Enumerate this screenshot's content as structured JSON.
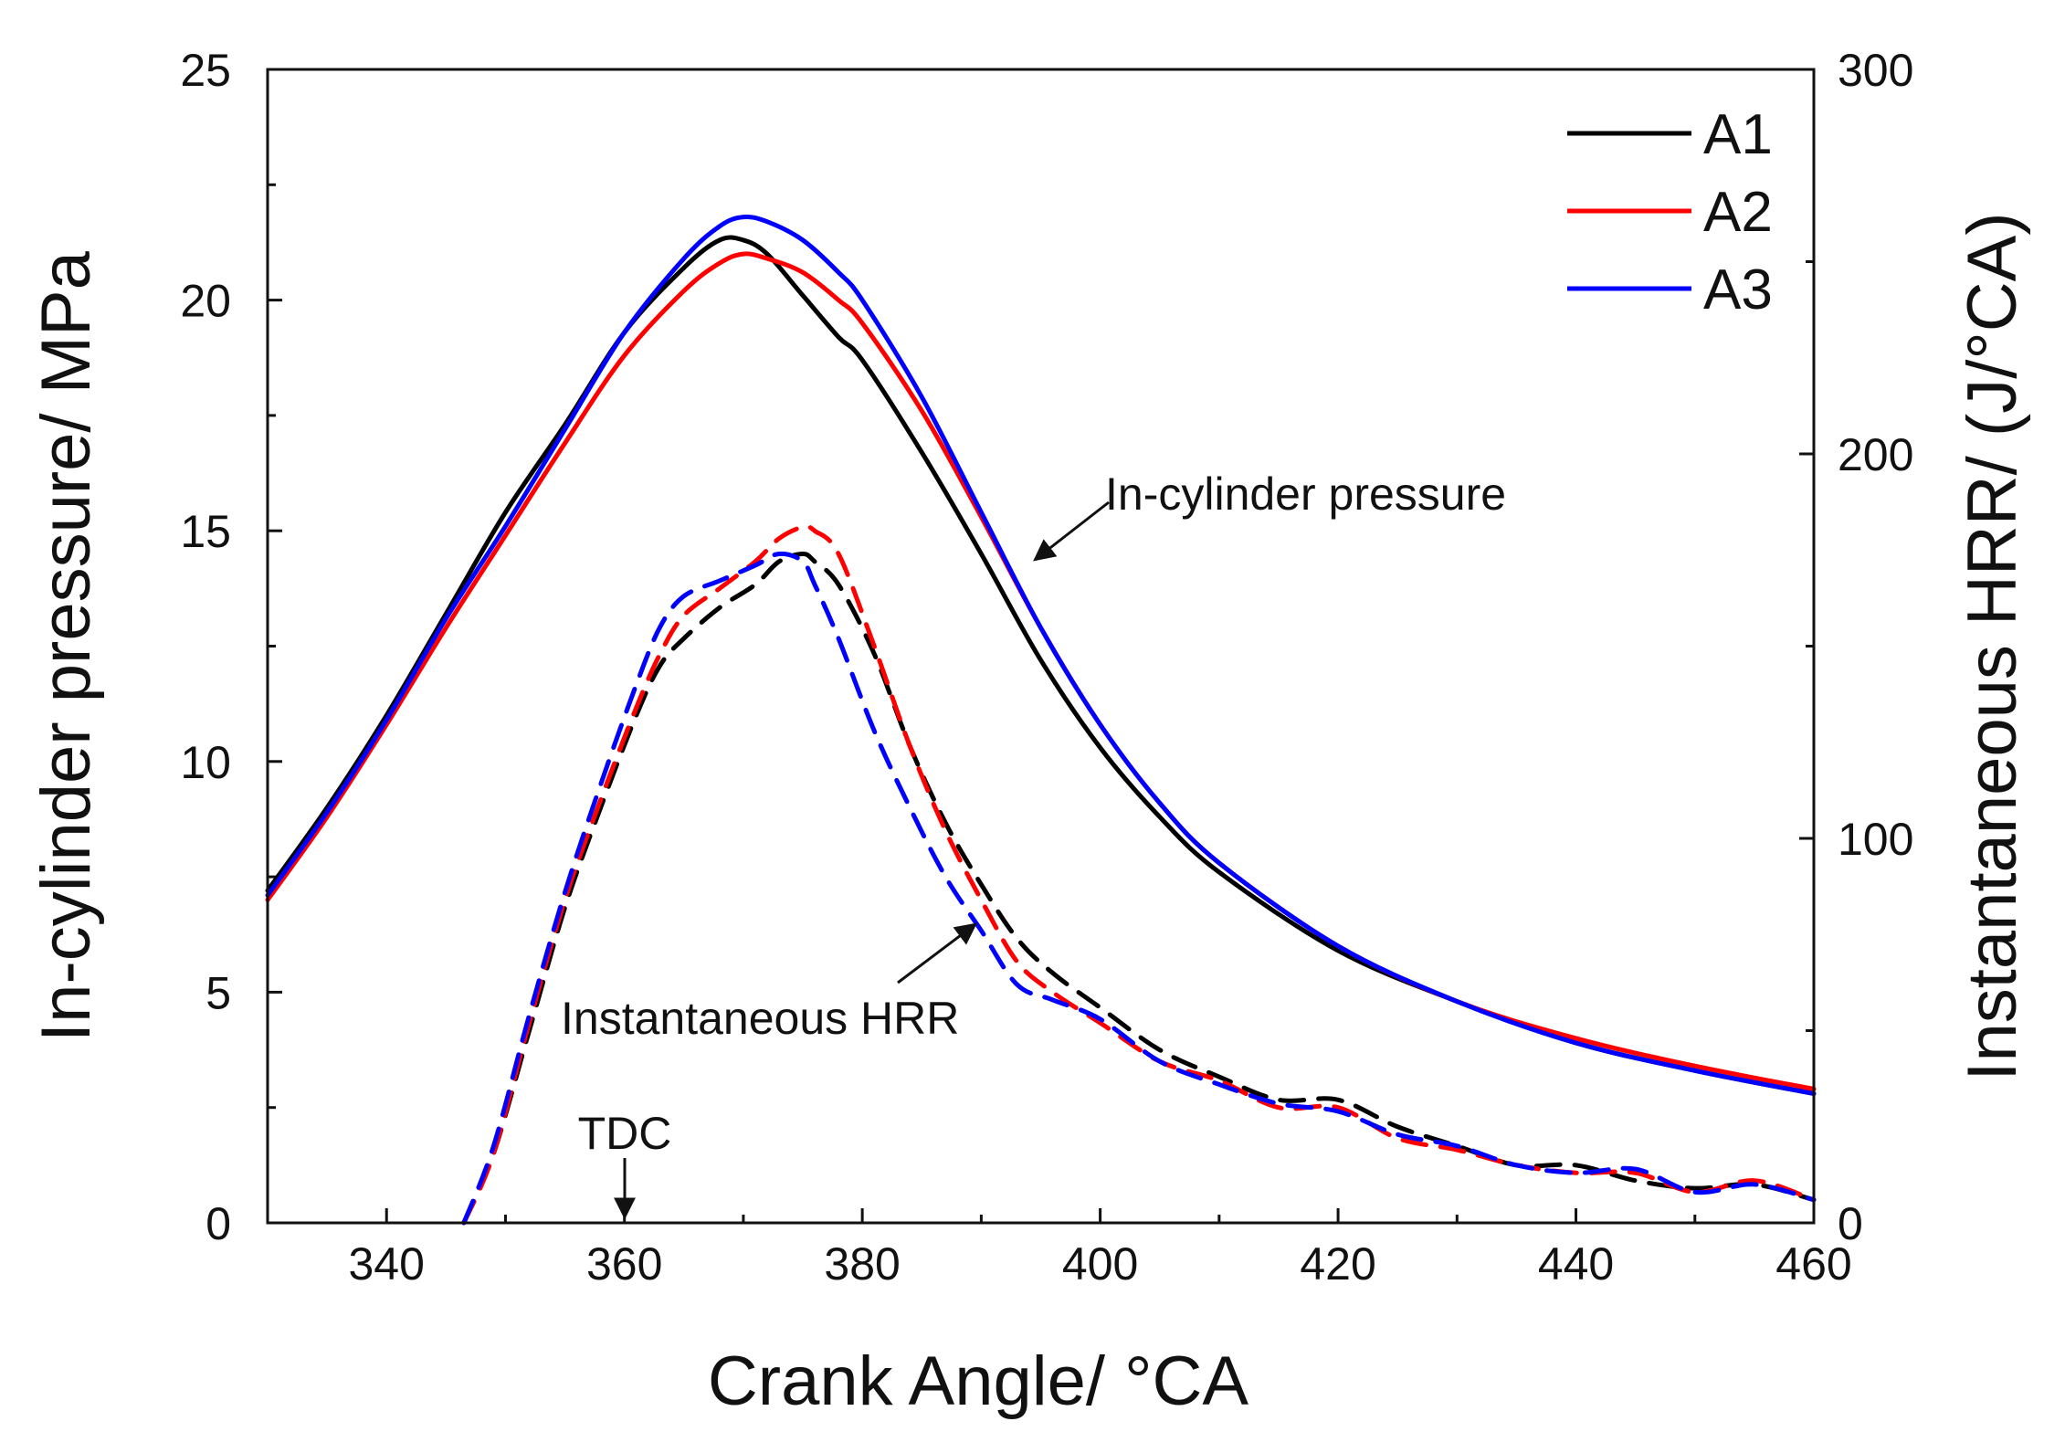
{
  "chart_data": {
    "type": "line",
    "xlabel": "Crank Angle/ °CA",
    "ylabel_left": "In-cylinder pressure/ MPa",
    "ylabel_right": "Instantaneous HRR/ (J/°CA)",
    "xlim": [
      330,
      460
    ],
    "ylim_left": [
      0,
      25
    ],
    "ylim_right": [
      0,
      300
    ],
    "x_ticks": [
      340,
      360,
      380,
      400,
      420,
      440,
      460
    ],
    "y_left_ticks": [
      0,
      5,
      10,
      15,
      20,
      25
    ],
    "y_right_ticks": [
      0,
      100,
      200,
      300
    ],
    "grid": false,
    "legend_position": "top-right",
    "legend": [
      "A1",
      "A2",
      "A3"
    ],
    "colors": {
      "A1": "#000000",
      "A2": "#ff0000",
      "A3": "#0000ff"
    },
    "series": [
      {
        "name": "A1",
        "quantity": "In-cylinder pressure",
        "axis": "left",
        "style": "solid",
        "x": [
          330,
          335,
          340,
          345,
          350,
          355,
          360,
          365,
          368,
          370,
          372,
          375,
          378,
          380,
          385,
          390,
          395,
          400,
          405,
          410,
          420,
          430,
          440,
          450,
          460
        ],
        "y": [
          7.2,
          9.0,
          11.0,
          13.2,
          15.4,
          17.3,
          19.3,
          20.7,
          21.3,
          21.3,
          21.0,
          20.1,
          19.2,
          18.7,
          16.7,
          14.5,
          12.2,
          10.3,
          8.8,
          7.6,
          5.9,
          4.8,
          3.9,
          3.3,
          2.8
        ]
      },
      {
        "name": "A2",
        "quantity": "In-cylinder pressure",
        "axis": "left",
        "style": "solid",
        "x": [
          330,
          335,
          340,
          345,
          350,
          355,
          360,
          365,
          368,
          370,
          372,
          375,
          378,
          380,
          385,
          390,
          395,
          400,
          405,
          410,
          420,
          430,
          440,
          450,
          460
        ],
        "y": [
          7.0,
          8.8,
          10.8,
          12.9,
          14.9,
          16.9,
          18.8,
          20.2,
          20.8,
          21.0,
          20.9,
          20.6,
          20.0,
          19.5,
          17.6,
          15.3,
          12.9,
          10.8,
          9.1,
          7.8,
          6.0,
          4.8,
          4.0,
          3.4,
          2.9
        ]
      },
      {
        "name": "A3",
        "quantity": "In-cylinder pressure",
        "axis": "left",
        "style": "solid",
        "x": [
          330,
          335,
          340,
          345,
          350,
          355,
          360,
          365,
          368,
          370,
          372,
          375,
          378,
          380,
          385,
          390,
          395,
          400,
          405,
          410,
          420,
          430,
          440,
          450,
          460
        ],
        "y": [
          7.1,
          8.9,
          10.9,
          13.1,
          15.1,
          17.2,
          19.3,
          20.9,
          21.6,
          21.8,
          21.7,
          21.3,
          20.6,
          20.0,
          17.9,
          15.4,
          12.9,
          10.8,
          9.1,
          7.8,
          6.0,
          4.8,
          3.9,
          3.3,
          2.8
        ]
      },
      {
        "name": "A1",
        "quantity": "Instantaneous HRR",
        "axis": "right",
        "style": "dashed",
        "x": [
          346.5,
          349,
          352,
          355,
          358,
          361,
          363,
          365,
          368,
          371,
          373,
          375,
          376,
          378,
          381,
          384,
          387,
          390,
          393,
          396,
          400,
          405,
          410,
          415,
          420,
          425,
          430,
          435,
          440,
          445,
          450,
          455,
          460
        ],
        "y": [
          0,
          18,
          50,
          82,
          108,
          132,
          145,
          152,
          160,
          166,
          172,
          174,
          172,
          166,
          148,
          124,
          104,
          88,
          74,
          65,
          56,
          45,
          38,
          32,
          32,
          25,
          20,
          15,
          15,
          11,
          9,
          10,
          6
        ]
      },
      {
        "name": "A2",
        "quantity": "Instantaneous HRR",
        "axis": "right",
        "style": "dashed",
        "x": [
          346.5,
          349,
          352,
          355,
          358,
          361,
          363,
          365,
          368,
          371,
          373,
          375,
          376,
          378,
          381,
          384,
          387,
          390,
          393,
          396,
          400,
          405,
          410,
          415,
          420,
          425,
          430,
          435,
          440,
          445,
          450,
          455,
          460
        ],
        "y": [
          0,
          18,
          52,
          84,
          110,
          134,
          148,
          158,
          165,
          172,
          178,
          181,
          180,
          174,
          150,
          124,
          102,
          84,
          68,
          60,
          52,
          42,
          37,
          30,
          30,
          22,
          19,
          15,
          13,
          13,
          8,
          11,
          6
        ]
      },
      {
        "name": "A3",
        "quantity": "Instantaneous HRR",
        "axis": "right",
        "style": "dashed",
        "x": [
          346.5,
          349,
          352,
          355,
          358,
          361,
          363,
          365,
          368,
          371,
          373,
          375,
          376,
          378,
          381,
          384,
          387,
          390,
          393,
          396,
          400,
          405,
          410,
          415,
          420,
          425,
          430,
          435,
          440,
          445,
          450,
          455,
          460
        ],
        "y": [
          0,
          20,
          54,
          86,
          114,
          140,
          155,
          163,
          167,
          171,
          174,
          172,
          166,
          152,
          128,
          108,
          90,
          76,
          62,
          58,
          53,
          42,
          36,
          31,
          29,
          23,
          20,
          15,
          13,
          14,
          8,
          10,
          6
        ]
      }
    ],
    "annotations": [
      {
        "text": "In-cylinder pressure",
        "arrow_to": {
          "x": 393,
          "y": 14.2,
          "axis": "left"
        }
      },
      {
        "text": "Instantaneous HRR",
        "arrow_to": {
          "x": 390.5,
          "y": 78,
          "axis": "right"
        }
      },
      {
        "text": "TDC",
        "arrow_to": {
          "x": 360,
          "y": 0,
          "axis": "left"
        }
      }
    ]
  }
}
